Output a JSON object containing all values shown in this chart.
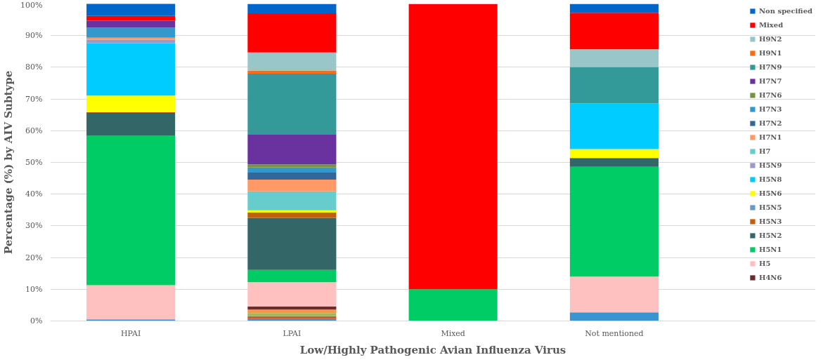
{
  "chart_data": {
    "type": "bar",
    "stacked": true,
    "xlabel": "Low/Highly Pathogenic Avian Influenza Virus",
    "ylabel": "Percentage (%) by AIV Subtype",
    "categories": [
      "HPAI",
      "LPAI",
      "Mixed",
      "Not mentioned"
    ],
    "ylim": [
      0,
      100
    ],
    "yticks": [
      {
        "value": 0,
        "label": "0%"
      },
      {
        "value": 10,
        "label": "10%"
      },
      {
        "value": 20,
        "label": "20%"
      },
      {
        "value": 30,
        "label": "30%"
      },
      {
        "value": 40,
        "label": "40%"
      },
      {
        "value": 50,
        "label": "50%"
      },
      {
        "value": 60,
        "label": "60%"
      },
      {
        "value": 70,
        "label": "70%"
      },
      {
        "value": 80,
        "label": "80%"
      },
      {
        "value": 90,
        "label": "90%"
      },
      {
        "value": 100,
        "label": "100%"
      }
    ],
    "grid": "y",
    "legend": "right",
    "series": [
      {
        "color": "#3a94d0",
        "values": [
          0.5,
          0.6,
          0,
          2.7
        ]
      },
      {
        "color": "#c0603a",
        "values": [
          0,
          0.9,
          0,
          0
        ]
      },
      {
        "color": "#9bbb59",
        "values": [
          0,
          1.0,
          0,
          0
        ]
      },
      {
        "color": "#f79646",
        "values": [
          0,
          1.1,
          0,
          0
        ]
      },
      {
        "name": "H4N6",
        "color": "#6b2c2c",
        "values": [
          0,
          1.0,
          0,
          0
        ]
      },
      {
        "name": "H5",
        "color": "#ffc0c0",
        "values": [
          10.8,
          7.6,
          0,
          11.3
        ]
      },
      {
        "name": "H5N1",
        "color": "#00cc66",
        "values": [
          47.2,
          3.9,
          10,
          34.6
        ]
      },
      {
        "name": "H5N2",
        "color": "#336666",
        "values": [
          7.1,
          16.4,
          0,
          2.8
        ]
      },
      {
        "name": "H5N3",
        "color": "#c0600a",
        "values": [
          0.3,
          1.7,
          0,
          0
        ]
      },
      {
        "name": "H5N5",
        "color": "#6699cc",
        "values": [
          0,
          0,
          0,
          0
        ]
      },
      {
        "name": "H5N6",
        "color": "#ffff00",
        "values": [
          5.2,
          0.7,
          0,
          2.8
        ]
      },
      {
        "name": "H5N8",
        "color": "#00ccff",
        "values": [
          16.5,
          0,
          0,
          14.4
        ]
      },
      {
        "name": "H5N9",
        "color": "#9999cc",
        "values": [
          1.1,
          0,
          0,
          0
        ]
      },
      {
        "name": "H7",
        "color": "#66cccc",
        "values": [
          0,
          6.0,
          0,
          0
        ]
      },
      {
        "name": "H7N1",
        "color": "#ff9966",
        "values": [
          0.6,
          3.7,
          0,
          0
        ]
      },
      {
        "name": "H7N2",
        "color": "#336699",
        "values": [
          0,
          2.2,
          0,
          0
        ]
      },
      {
        "name": "H7N3",
        "color": "#3399cc",
        "values": [
          3.2,
          1.6,
          0,
          0
        ]
      },
      {
        "name": "H7N6",
        "color": "#77933c",
        "values": [
          0,
          1.0,
          0,
          0
        ]
      },
      {
        "name": "H7N7",
        "color": "#6a329f",
        "values": [
          2.2,
          9.5,
          0,
          0
        ]
      },
      {
        "name": "H7N9",
        "color": "#339999",
        "values": [
          0,
          19.1,
          0,
          11.5
        ]
      },
      {
        "name": "H9N1",
        "color": "#ff6a13",
        "values": [
          0,
          1.0,
          0,
          0
        ]
      },
      {
        "name": "H9N2",
        "color": "#99c6c8",
        "values": [
          0,
          5.7,
          0,
          5.6
        ]
      },
      {
        "name": "Mixed",
        "color": "#ff0000",
        "values": [
          1.5,
          12.3,
          90,
          11.5
        ]
      },
      {
        "name": "Non specified",
        "color": "#0066cc",
        "values": [
          4.0,
          3.0,
          0,
          2.8
        ]
      }
    ]
  }
}
